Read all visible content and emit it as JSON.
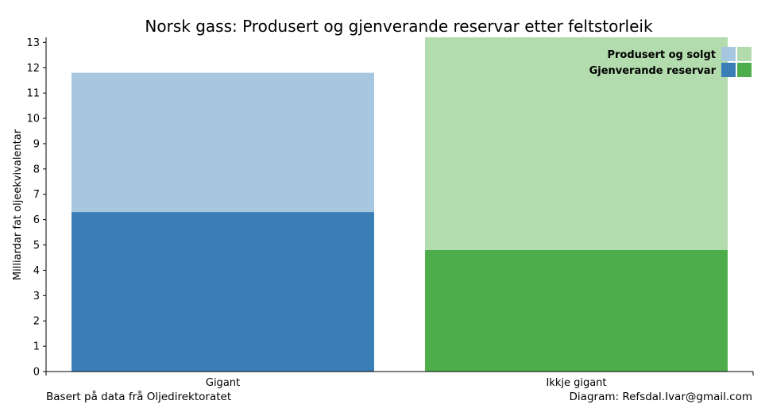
{
  "chart_data": {
    "type": "bar",
    "title": "Norsk gass: Produsert og gjenverande reservar etter feltstorleik",
    "xlabel": "",
    "ylabel": "Milliardar fat oljeekvivalentar",
    "ylim": [
      0,
      13.2
    ],
    "yticks": [
      0,
      1,
      2,
      3,
      4,
      5,
      6,
      7,
      8,
      9,
      10,
      11,
      12,
      13
    ],
    "categories": [
      "Gigant",
      "Ikkje gigant"
    ],
    "stacked": true,
    "grid": false,
    "legend_position": "top-right",
    "series": [
      {
        "name": "Gjenverande reservar",
        "values": [
          6.3,
          4.8
        ],
        "colors": [
          "#3a7eb8",
          "#4dad4a"
        ]
      },
      {
        "name": "Produsert og solgt",
        "values": [
          5.5,
          8.4
        ],
        "colors": [
          "#a7c6df",
          "#b2dcae"
        ]
      }
    ],
    "legend": [
      {
        "label": "Produsert og solgt",
        "colors": [
          "#a7c6df",
          "#b2dcae"
        ]
      },
      {
        "label": "Gjenverande reservar",
        "colors": [
          "#3a7eb8",
          "#4dad4a"
        ]
      }
    ]
  },
  "footer": {
    "left": "Basert på data frå Oljedirektoratet",
    "right": "Diagram: Refsdal.Ivar@gmail.com"
  }
}
